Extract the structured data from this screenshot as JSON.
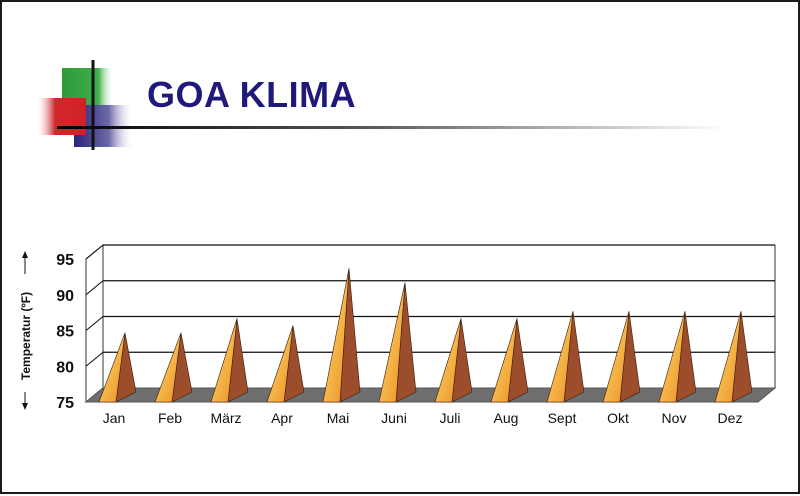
{
  "slide": {
    "title": "GOA KLIMA"
  },
  "colors": {
    "title": "#1f1a7a",
    "deco_green": "#2e9b3a",
    "deco_red": "#d0282c",
    "deco_navy": "#2a2577",
    "pyramid_light": "#f6b84a",
    "pyramid_dark": "#9c4e2c",
    "floor": "#6f6f6f"
  },
  "chart_data": {
    "type": "bar",
    "style": "3d-pyramid",
    "categories": [
      "Jan",
      "Feb",
      "März",
      "Apr",
      "Mai",
      "Juni",
      "Juli",
      "Aug",
      "Sept",
      "Okt",
      "Nov",
      "Dez"
    ],
    "values": [
      83,
      83,
      85,
      84,
      92,
      90,
      85,
      85,
      86,
      86,
      86,
      86
    ],
    "ylabel": "Temperatur (ºF)",
    "ylim": [
      75,
      95
    ],
    "yticks": [
      75,
      80,
      85,
      90,
      95
    ],
    "ytick_labels": [
      "75",
      "80",
      "85",
      "90",
      "95"
    ],
    "grid": true,
    "legend": "none"
  }
}
